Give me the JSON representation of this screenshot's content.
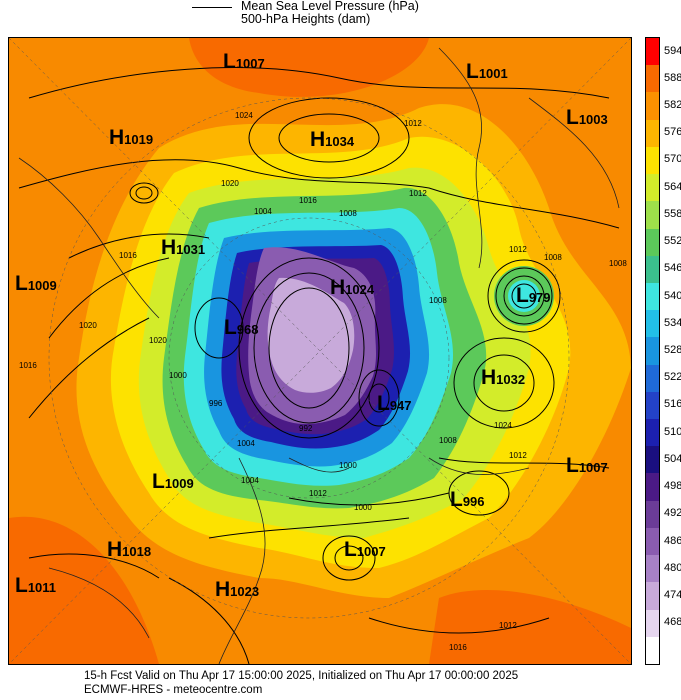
{
  "header": {
    "line1": "Mean Sea Level Pressure (hPa)",
    "line2": "500-hPa Heights (dam)"
  },
  "footer": {
    "line1": "15-h Fcst Valid on Thu Apr 17 15:00:00 2025, Initialized on Thu Apr 17 00:00:00 2025",
    "line2": "ECMWF-HRES  - meteocentre.com"
  },
  "colorbar": {
    "levels": [
      "594",
      "588",
      "582",
      "576",
      "570",
      "564",
      "558",
      "552",
      "546",
      "540",
      "534",
      "528",
      "522",
      "516",
      "510",
      "504",
      "498",
      "492",
      "486",
      "480",
      "474",
      "468"
    ],
    "colors": [
      "#ff0000",
      "#f86a00",
      "#fc9100",
      "#fdb500",
      "#fde200",
      "#d3ec2a",
      "#9ee04a",
      "#5cc95a",
      "#3bc08d",
      "#3ee6e0",
      "#22bfe8",
      "#1995e0",
      "#1f6ad8",
      "#2342c8",
      "#1c20b0",
      "#1a0f80",
      "#4b1a86",
      "#6b3c98",
      "#8a5cb0",
      "#a781c6",
      "#c8aada",
      "#e6d6ef",
      "#ffffff"
    ]
  },
  "pressure_systems": [
    {
      "type": "L",
      "value": "1007"
    },
    {
      "type": "L",
      "value": "1001"
    },
    {
      "type": "H",
      "value": "1019"
    },
    {
      "type": "H",
      "value": "1034"
    },
    {
      "type": "L",
      "value": "1003"
    },
    {
      "type": "H",
      "value": "1031"
    },
    {
      "type": "L",
      "value": "1009"
    },
    {
      "type": "H",
      "value": "1024"
    },
    {
      "type": "L",
      "value": "979"
    },
    {
      "type": "L",
      "value": "968"
    },
    {
      "type": "H",
      "value": "1032"
    },
    {
      "type": "L",
      "value": "947"
    },
    {
      "type": "L",
      "value": "1007"
    },
    {
      "type": "L",
      "value": "1009"
    },
    {
      "type": "L",
      "value": "996"
    },
    {
      "type": "H",
      "value": "1018"
    },
    {
      "type": "L",
      "value": "1007"
    },
    {
      "type": "L",
      "value": "1011"
    },
    {
      "type": "H",
      "value": "1023"
    }
  ],
  "isobar_labels": [
    "1024",
    "1020",
    "1016",
    "1012",
    "1008",
    "1004",
    "1000",
    "996",
    "1020",
    "1016",
    "1012",
    "1008",
    "1004",
    "1000",
    "992",
    "1016",
    "1012",
    "1008",
    "1024",
    "1012",
    "1008",
    "1000",
    "1004",
    "1012",
    "1016",
    "1008",
    "1020",
    "1012"
  ]
}
